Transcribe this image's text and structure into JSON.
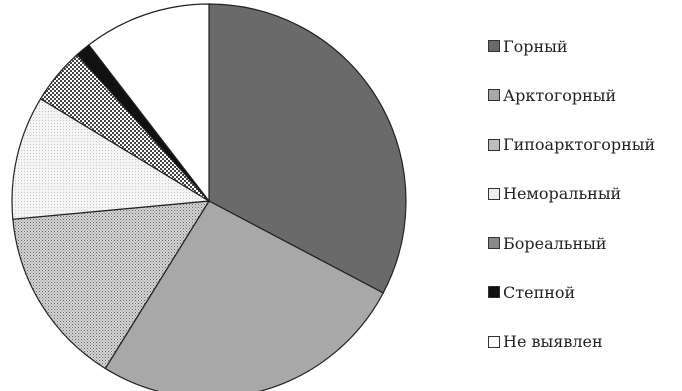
{
  "chart_data": {
    "type": "pie",
    "title": "",
    "legend_position": "right",
    "slices": [
      {
        "label": "Горный",
        "value": 34.5,
        "color": "#6a6a6a",
        "pattern": "solid"
      },
      {
        "label": "Арктогорный",
        "value": 27.5,
        "color": "#a8a8a8",
        "pattern": "solid"
      },
      {
        "label": "Гипоарктогорный",
        "value": 15.5,
        "color": "#bdbdbd",
        "pattern": "fine-dots"
      },
      {
        "label": "Неморальный",
        "value": 10.7,
        "color": "#eeeeee",
        "pattern": "light"
      },
      {
        "label": "Бореальный",
        "value": 4.9,
        "color": "#8a8a8a",
        "pattern": "checker"
      },
      {
        "label": "Степной",
        "value": 1.3,
        "color": "#111111",
        "pattern": "solid"
      },
      {
        "label": "Не выявлен",
        "value": 11.0,
        "color": "#ffffff",
        "pattern": "solid"
      }
    ]
  }
}
